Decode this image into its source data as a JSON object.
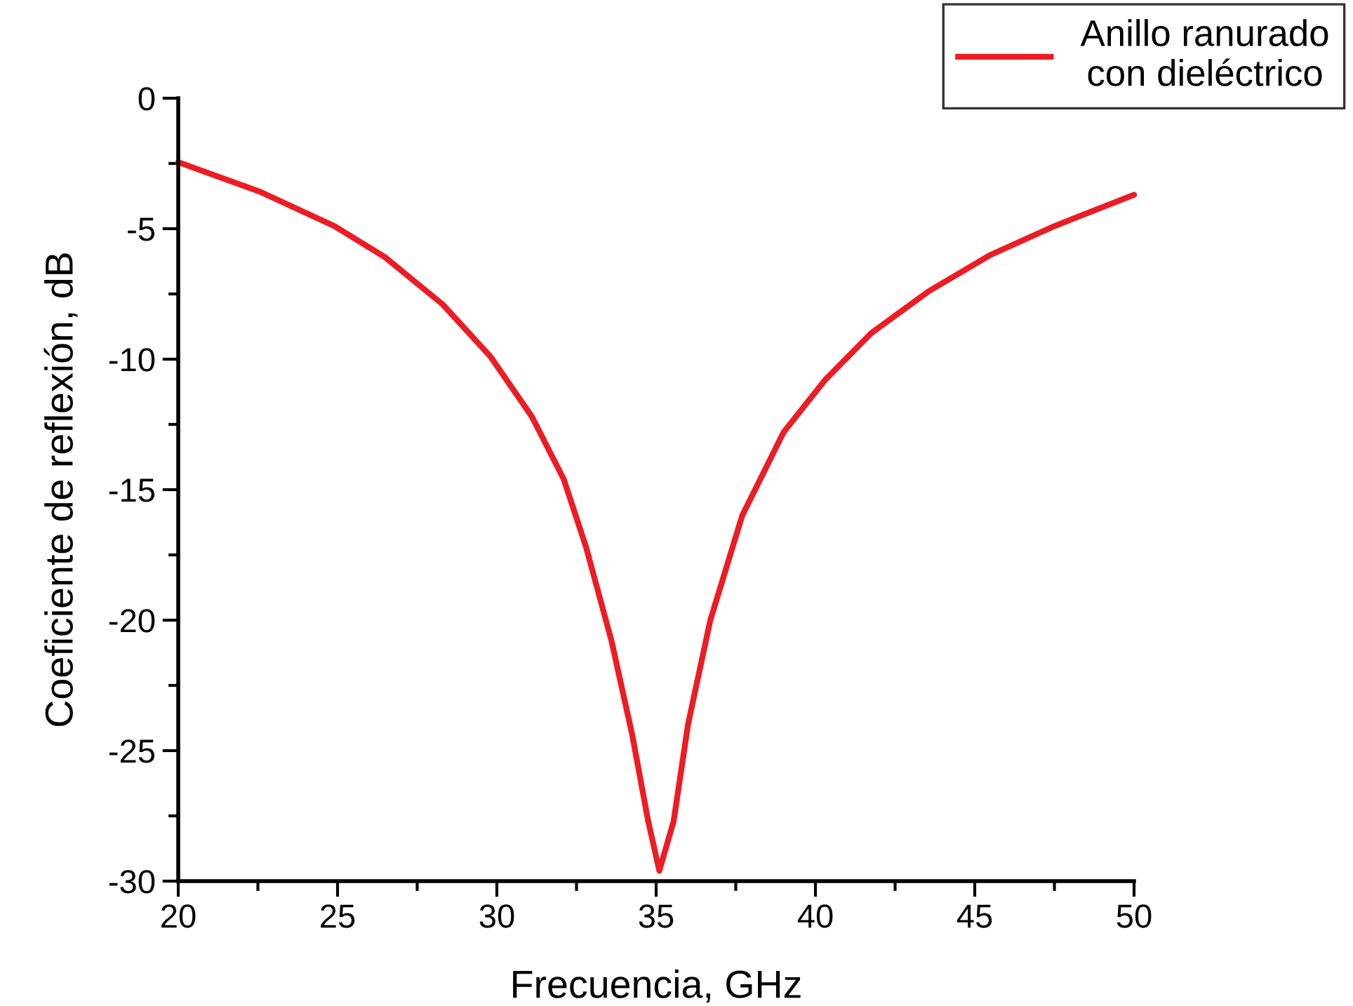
{
  "chart_data": {
    "type": "line",
    "xlabel": "Frecuencia, GHz",
    "ylabel": "Coeficiente de reflexión, dB",
    "xlim": [
      20,
      50
    ],
    "ylim": [
      -30,
      0
    ],
    "xticks": [
      20,
      25,
      30,
      35,
      40,
      45,
      50
    ],
    "yticks": [
      -30,
      -25,
      -20,
      -15,
      -10,
      -5,
      0
    ],
    "grid": false,
    "legend": "top right",
    "marker": "none",
    "line_style": "solid",
    "series": [
      {
        "name": "Anillo ranurado\ncon dieléctrico",
        "color": "#ed1c24",
        "x": [
          20,
          22.6,
          24.9,
          26.5,
          28.3,
          29.8,
          31.1,
          32.1,
          32.8,
          33.6,
          34.25,
          34.75,
          35.1,
          35.55,
          36.0,
          36.7,
          37.7,
          39.0,
          40.3,
          41.75,
          43.55,
          45.5,
          47.5,
          50
        ],
        "values": [
          -2.45,
          -3.6,
          -4.9,
          -6.1,
          -7.9,
          -9.9,
          -12.2,
          -14.6,
          -17.2,
          -20.8,
          -24.4,
          -27.7,
          -29.6,
          -27.7,
          -24.0,
          -20.0,
          -16.0,
          -12.8,
          -10.8,
          -9.0,
          -7.4,
          -6.0,
          -4.9,
          -3.7
        ]
      }
    ]
  }
}
